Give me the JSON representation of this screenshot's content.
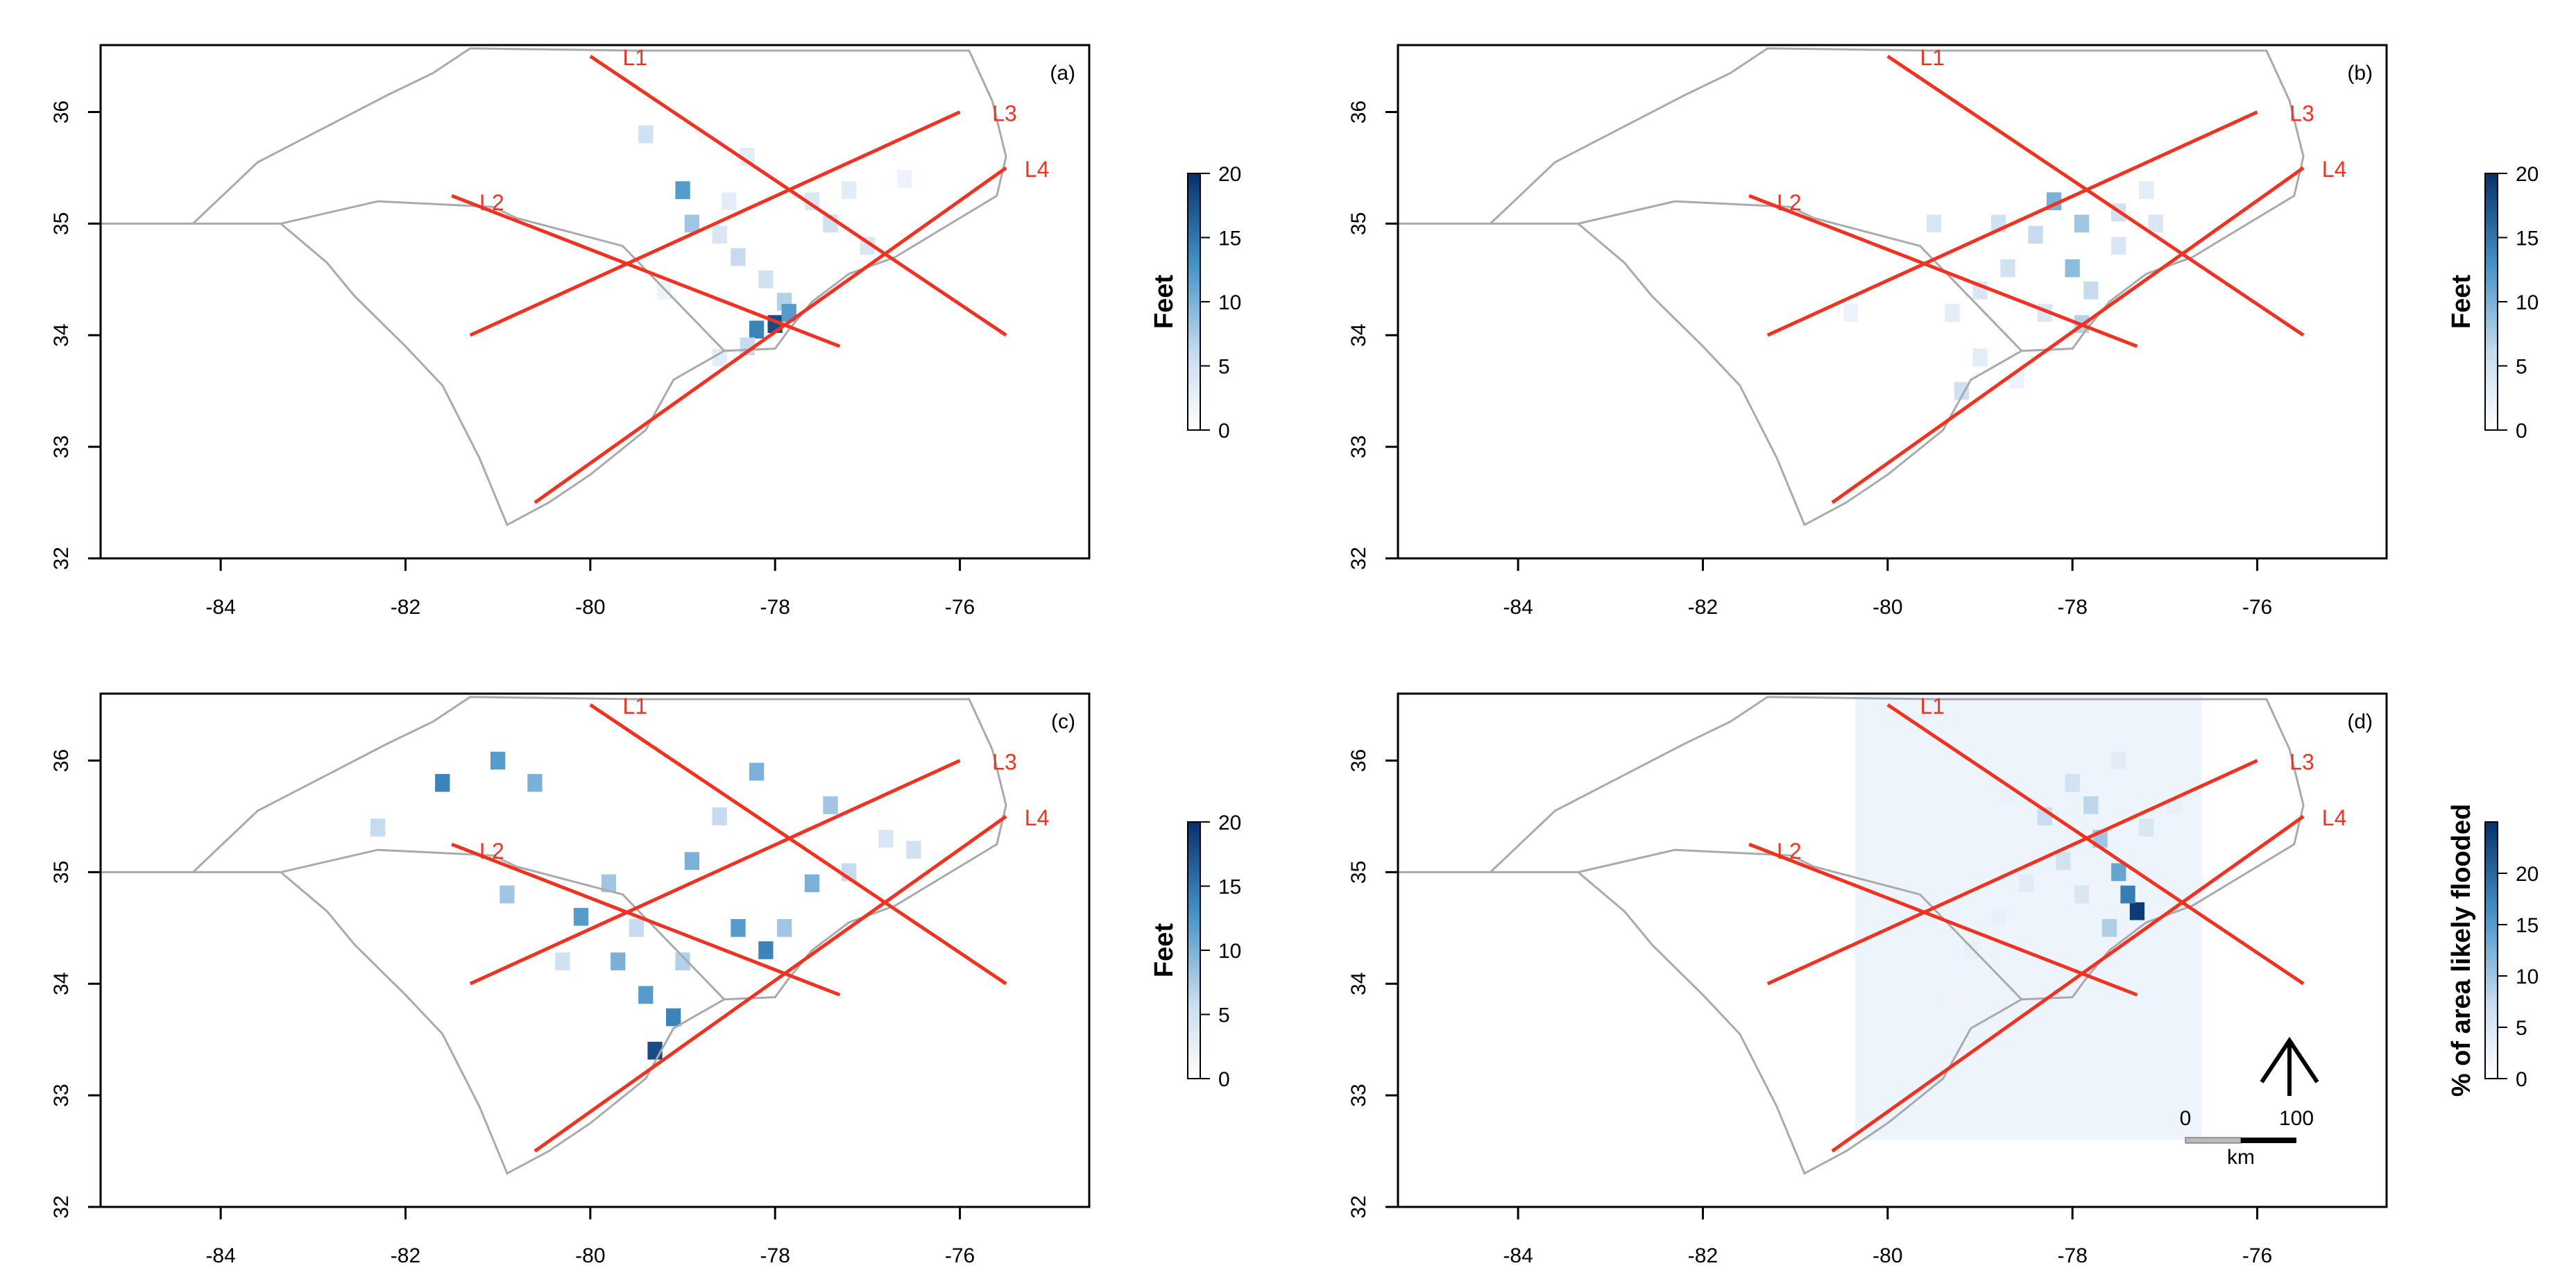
{
  "chart_data": [
    {
      "type": "heatmap",
      "panel_label": "(a)",
      "xticks": [
        "-84",
        "-82",
        "-80",
        "-78",
        "-76"
      ],
      "yticks": [
        "32",
        "33",
        "34",
        "35",
        "36"
      ],
      "xlim": [
        -85.3,
        -74.6
      ],
      "ylim": [
        32.0,
        36.6
      ],
      "line_labels": [
        "L1",
        "L2",
        "L3",
        "L4"
      ],
      "colorbar": {
        "title": "Feet",
        "ticks": [
          "0",
          "5",
          "10",
          "15",
          "20"
        ],
        "min": 0,
        "max": 20
      },
      "cells": [
        [
          -78.9,
          35.0,
          8
        ],
        [
          -78.6,
          34.9,
          4
        ],
        [
          -78.4,
          34.7,
          6
        ],
        [
          -78.1,
          34.5,
          5
        ],
        [
          -77.9,
          34.3,
          7
        ],
        [
          -78.0,
          34.1,
          18
        ],
        [
          -78.2,
          34.05,
          14
        ],
        [
          -77.85,
          34.2,
          12
        ],
        [
          -78.3,
          33.9,
          6
        ],
        [
          -78.6,
          33.8,
          3
        ],
        [
          -79.0,
          35.3,
          12
        ],
        [
          -77.4,
          35.0,
          5
        ],
        [
          -77.0,
          34.8,
          4
        ],
        [
          -78.3,
          35.6,
          3
        ],
        [
          -79.4,
          35.8,
          5
        ],
        [
          -76.6,
          35.4,
          2
        ],
        [
          -77.6,
          35.2,
          4
        ],
        [
          -78.5,
          35.2,
          3
        ],
        [
          -77.2,
          35.3,
          3
        ],
        [
          -79.2,
          34.4,
          2
        ]
      ]
    },
    {
      "type": "heatmap",
      "panel_label": "(b)",
      "xticks": [
        "-84",
        "-82",
        "-80",
        "-78",
        "-76"
      ],
      "yticks": [
        "32",
        "33",
        "34",
        "35",
        "36"
      ],
      "xlim": [
        -85.3,
        -74.6
      ],
      "ylim": [
        32.0,
        36.6
      ],
      "line_labels": [
        "L1",
        "L2",
        "L3",
        "L4"
      ],
      "colorbar": {
        "title": "Feet",
        "ticks": [
          "0",
          "5",
          "10",
          "15",
          "20"
        ],
        "min": 0,
        "max": 20
      },
      "cells": [
        [
          -78.2,
          35.2,
          10
        ],
        [
          -77.9,
          35.0,
          8
        ],
        [
          -78.4,
          34.9,
          6
        ],
        [
          -78.0,
          34.6,
          9
        ],
        [
          -78.7,
          34.6,
          5
        ],
        [
          -79.0,
          34.4,
          4
        ],
        [
          -79.3,
          34.2,
          3
        ],
        [
          -79.0,
          33.8,
          3
        ],
        [
          -78.6,
          33.6,
          2
        ],
        [
          -77.9,
          34.1,
          7
        ],
        [
          -77.5,
          35.1,
          5
        ],
        [
          -77.1,
          35.0,
          4
        ],
        [
          -78.8,
          35.0,
          5
        ],
        [
          -79.5,
          35.0,
          4
        ],
        [
          -77.8,
          34.4,
          6
        ],
        [
          -78.3,
          34.2,
          4
        ],
        [
          -79.2,
          33.5,
          5
        ],
        [
          -77.2,
          35.3,
          3
        ],
        [
          -80.4,
          34.2,
          2
        ],
        [
          -77.5,
          34.8,
          4
        ]
      ]
    },
    {
      "type": "heatmap",
      "panel_label": "(c)",
      "xticks": [
        "-84",
        "-82",
        "-80",
        "-78",
        "-76"
      ],
      "yticks": [
        "32",
        "33",
        "34",
        "35",
        "36"
      ],
      "xlim": [
        -85.3,
        -74.6
      ],
      "ylim": [
        32.0,
        36.6
      ],
      "line_labels": [
        "L1",
        "L2",
        "L3",
        "L4"
      ],
      "colorbar": {
        "title": "Feet",
        "ticks": [
          "0",
          "5",
          "10",
          "15",
          "20"
        ],
        "min": 0,
        "max": 20
      },
      "cells": [
        [
          -79.3,
          33.4,
          18
        ],
        [
          -79.1,
          33.7,
          14
        ],
        [
          -79.4,
          33.9,
          12
        ],
        [
          -79.7,
          34.2,
          10
        ],
        [
          -80.1,
          34.6,
          12
        ],
        [
          -79.8,
          34.9,
          8
        ],
        [
          -78.9,
          35.1,
          10
        ],
        [
          -78.4,
          34.5,
          12
        ],
        [
          -78.1,
          34.3,
          14
        ],
        [
          -77.9,
          34.5,
          8
        ],
        [
          -77.6,
          34.9,
          10
        ],
        [
          -77.2,
          35.0,
          6
        ],
        [
          -76.8,
          35.3,
          4
        ],
        [
          -76.5,
          35.2,
          5
        ],
        [
          -77.4,
          35.6,
          8
        ],
        [
          -80.6,
          35.8,
          10
        ],
        [
          -81.0,
          36.0,
          12
        ],
        [
          -81.6,
          35.8,
          14
        ],
        [
          -82.3,
          35.4,
          6
        ],
        [
          -80.9,
          34.8,
          8
        ],
        [
          -79.5,
          34.5,
          6
        ],
        [
          -80.3,
          34.2,
          5
        ],
        [
          -79.0,
          34.2,
          7
        ],
        [
          -78.6,
          35.5,
          6
        ],
        [
          -78.2,
          35.9,
          10
        ]
      ]
    },
    {
      "type": "heatmap",
      "panel_label": "(d)",
      "xticks": [
        "-84",
        "-82",
        "-80",
        "-78",
        "-76"
      ],
      "yticks": [
        "32",
        "33",
        "34",
        "35",
        "36"
      ],
      "xlim": [
        -85.3,
        -74.6
      ],
      "ylim": [
        32.0,
        36.6
      ],
      "line_labels": [
        "L1",
        "L2",
        "L3",
        "L4"
      ],
      "colorbar": {
        "title": "% of area likely flooded",
        "ticks": [
          "0",
          "5",
          "10",
          "15",
          "20"
        ],
        "min": 0,
        "max": 25
      },
      "scalebar": {
        "start": "0",
        "end": "100",
        "unit": "km"
      },
      "cells": [
        [
          -77.3,
          34.65,
          24
        ],
        [
          -77.4,
          34.8,
          18
        ],
        [
          -77.5,
          35.0,
          14
        ],
        [
          -77.7,
          35.3,
          10
        ],
        [
          -77.8,
          35.6,
          8
        ],
        [
          -78.0,
          35.8,
          6
        ],
        [
          -78.3,
          35.5,
          7
        ],
        [
          -78.1,
          35.1,
          6
        ],
        [
          -77.6,
          34.5,
          9
        ],
        [
          -77.9,
          34.8,
          5
        ],
        [
          -78.5,
          34.9,
          4
        ],
        [
          -78.8,
          34.6,
          3
        ],
        [
          -79.1,
          34.3,
          3
        ],
        [
          -79.3,
          33.9,
          2
        ],
        [
          -77.2,
          35.4,
          5
        ],
        [
          -76.9,
          35.6,
          3
        ],
        [
          -79.6,
          34.7,
          2
        ],
        [
          -78.7,
          35.7,
          3
        ],
        [
          -77.5,
          36.0,
          4
        ]
      ]
    }
  ]
}
